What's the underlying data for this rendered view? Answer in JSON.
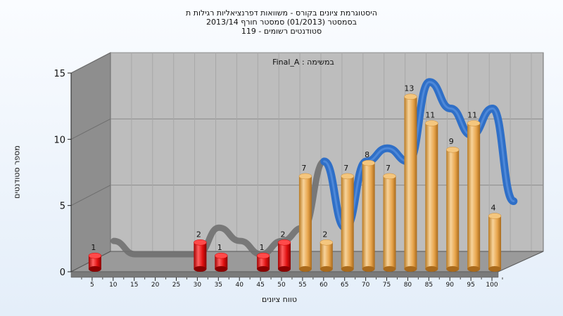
{
  "chart_data": {
    "type": "bar",
    "title_lines": [
      "היסטוגרמת ציונים בקורס - משוואות דפרנציאליות רגילות ת",
      "בסמסטר  (01/2013)  סמסטר חורף  2013/14",
      "סטודנטים רשומים - 119"
    ],
    "annotation": "Final_A : במשימה",
    "xlabel": "טווח ציונים",
    "ylabel": "מספר סטודנטים",
    "ylim": [
      0,
      15
    ],
    "yticks": [
      0,
      5,
      10,
      15
    ],
    "categories": [
      "5",
      "10",
      "15",
      "20",
      "25",
      "30",
      "35",
      "40",
      "45",
      "50",
      "55",
      "60",
      "65",
      "70",
      "75",
      "80",
      "85",
      "90",
      "95",
      "100"
    ],
    "values": [
      1,
      0,
      0,
      0,
      0,
      2,
      1,
      0,
      1,
      2,
      7,
      2,
      7,
      8,
      7,
      13,
      11,
      9,
      11,
      4
    ],
    "bar_colors": {
      "fail": "#e01010",
      "pass": "#e8a54c"
    },
    "pass_threshold": 55,
    "trend_colors": {
      "fail": "#707070",
      "pass": "#2f6fc7"
    },
    "wall_color": "#8e8e8e",
    "plot_color": "#bdbdbd",
    "grid": true,
    "legend": "none"
  }
}
